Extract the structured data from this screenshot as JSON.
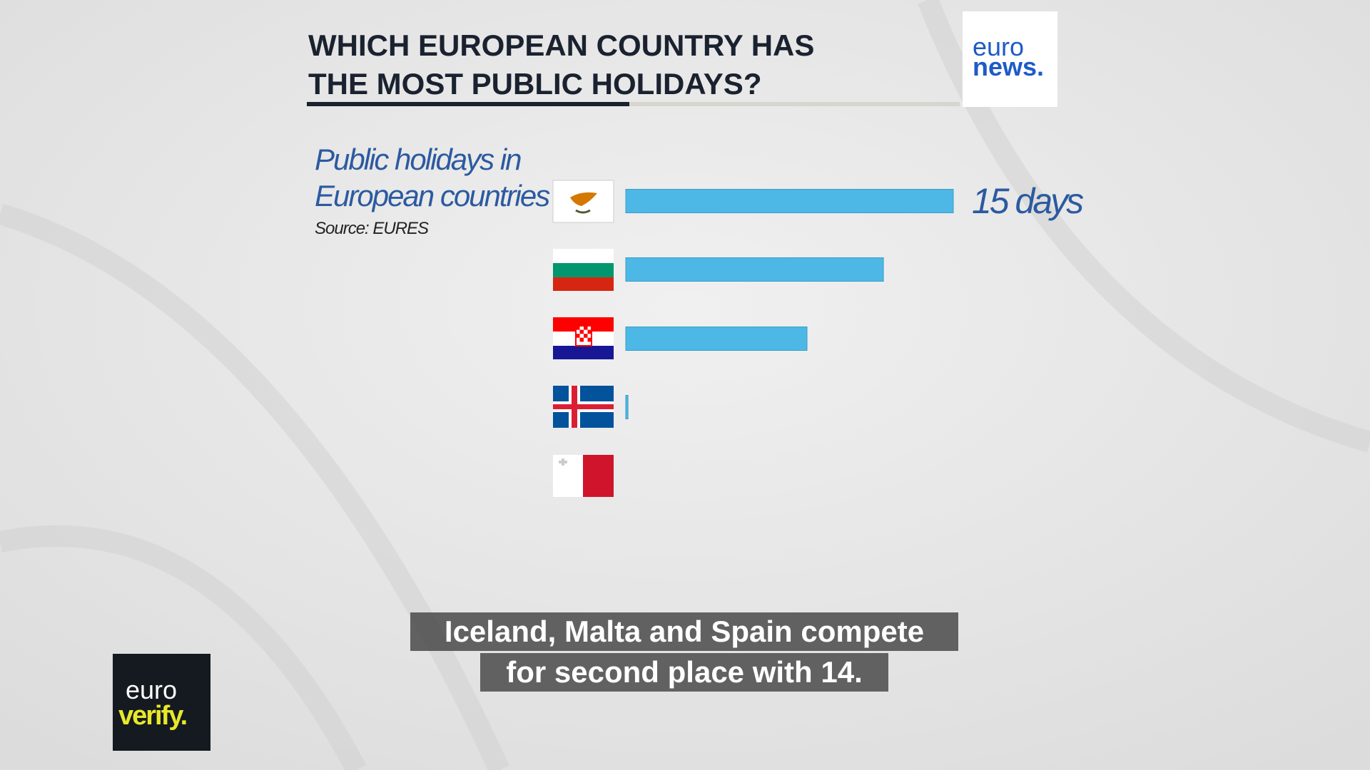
{
  "title": [
    "WHICH EUROPEAN COUNTRY HAS",
    "THE MOST PUBLIC HOLIDAYS?"
  ],
  "logos": {
    "euronews": [
      "euro",
      "news."
    ],
    "euroverify": [
      "euro",
      "verify."
    ]
  },
  "caption": [
    "Iceland, Malta and Spain compete",
    "for second place with 14."
  ],
  "chart_data": {
    "type": "bar",
    "orientation": "horizontal",
    "subtitle": [
      "Public holidays in",
      "European countries"
    ],
    "source": "Source: EURES",
    "categories": [
      null,
      null,
      null,
      null,
      null
    ],
    "values": [
      15,
      11.8,
      8.3,
      0.1,
      0
    ],
    "value_labels": [
      "15 days",
      null,
      null,
      null,
      null
    ],
    "color": "#4db8e6"
  }
}
